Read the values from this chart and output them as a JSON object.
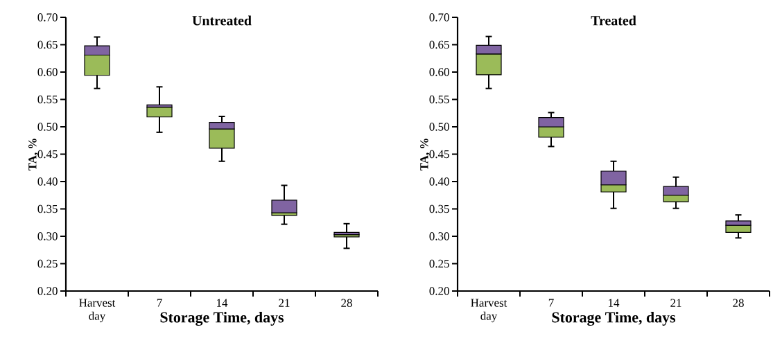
{
  "chart_data": [
    {
      "type": "box",
      "title": "Untreated",
      "xlabel": "Storage Time, days",
      "ylabel": "TA, %",
      "categories": [
        "Harvest day",
        "7",
        "14",
        "21",
        "28"
      ],
      "series": [
        {
          "color": "#8064a2",
          "colors": [
            "#9bbb59",
            "#9bbb59",
            "#9bbb59",
            "#9bbb59",
            "#9bbb59"
          ],
          "boxes": [
            {
              "low": 0.57,
              "q1": 0.594,
              "median": 0.631,
              "q3": 0.648,
              "high": 0.664
            },
            {
              "low": 0.49,
              "q1": 0.518,
              "median": 0.536,
              "q3": 0.54,
              "high": 0.573
            },
            {
              "low": 0.437,
              "q1": 0.461,
              "median": 0.496,
              "q3": 0.508,
              "high": 0.519
            },
            {
              "low": 0.322,
              "q1": 0.338,
              "median": 0.343,
              "q3": 0.366,
              "high": 0.393
            },
            {
              "low": 0.278,
              "q1": 0.299,
              "median": 0.303,
              "q3": 0.307,
              "high": 0.323
            }
          ]
        }
      ],
      "ylim": [
        0.2,
        0.7
      ],
      "yticks": [
        {
          "value": 0.2,
          "label": "0.20"
        },
        {
          "value": 0.25,
          "label": "0.25"
        },
        {
          "value": 0.3,
          "label": "0.30"
        },
        {
          "value": 0.35,
          "label": "0.35"
        },
        {
          "value": 0.4,
          "label": "0.40"
        },
        {
          "value": 0.45,
          "label": "0.45"
        },
        {
          "value": 0.5,
          "label": "0.50"
        },
        {
          "value": 0.55,
          "label": "0.55"
        },
        {
          "value": 0.6,
          "label": "0.60"
        },
        {
          "value": 0.65,
          "label": "0.65"
        },
        {
          "value": 0.7,
          "label": "0.70"
        }
      ]
    },
    {
      "type": "box",
      "title": "Treated",
      "xlabel": "Storage Time, days",
      "ylabel": "TA, %",
      "categories": [
        "Harvest day",
        "7",
        "14",
        "21",
        "28"
      ],
      "series": [
        {
          "color": "#8064a2",
          "colors": [
            "#9bbb59",
            "#9bbb59",
            "#9bbb59",
            "#9bbb59",
            "#9bbb59"
          ],
          "boxes": [
            {
              "low": 0.57,
              "q1": 0.595,
              "median": 0.633,
              "q3": 0.649,
              "high": 0.665
            },
            {
              "low": 0.464,
              "q1": 0.481,
              "median": 0.5,
              "q3": 0.517,
              "high": 0.526
            },
            {
              "low": 0.351,
              "q1": 0.381,
              "median": 0.394,
              "q3": 0.419,
              "high": 0.437
            },
            {
              "low": 0.351,
              "q1": 0.363,
              "median": 0.375,
              "q3": 0.391,
              "high": 0.408
            },
            {
              "low": 0.297,
              "q1": 0.307,
              "median": 0.32,
              "q3": 0.328,
              "high": 0.339
            }
          ]
        }
      ],
      "ylim": [
        0.2,
        0.7
      ],
      "yticks": [
        {
          "value": 0.2,
          "label": "0.20"
        },
        {
          "value": 0.25,
          "label": "0.25"
        },
        {
          "value": 0.3,
          "label": "0.30"
        },
        {
          "value": 0.35,
          "label": "0.35"
        },
        {
          "value": 0.4,
          "label": "0.40"
        },
        {
          "value": 0.45,
          "label": "0.45"
        },
        {
          "value": 0.5,
          "label": "0.50"
        },
        {
          "value": 0.55,
          "label": "0.55"
        },
        {
          "value": 0.6,
          "label": "0.60"
        },
        {
          "value": 0.65,
          "label": "0.65"
        },
        {
          "value": 0.7,
          "label": "0.70"
        }
      ]
    }
  ]
}
